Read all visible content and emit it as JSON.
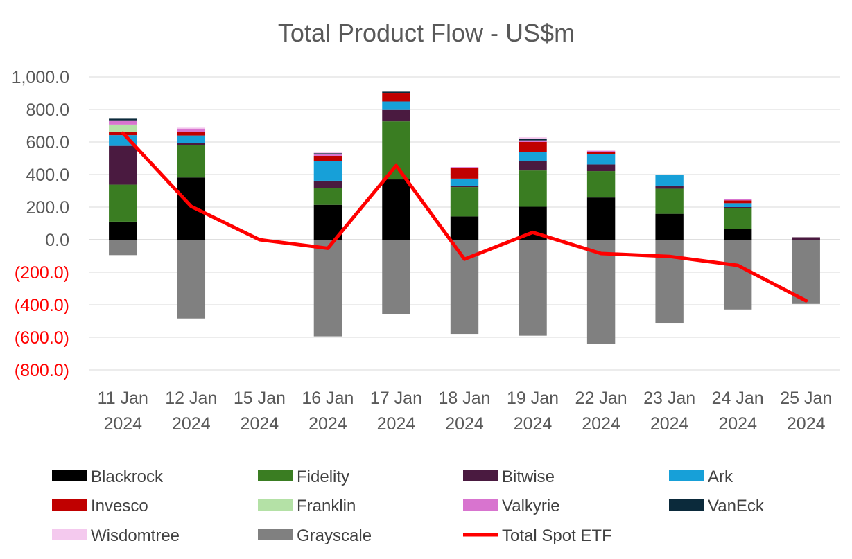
{
  "chart_data": {
    "type": "bar",
    "stacked": true,
    "title": "Total Product Flow - US$m",
    "xlabel": "",
    "ylabel": "",
    "ylim": [
      -800,
      1000
    ],
    "yticks": [
      1000,
      800,
      600,
      400,
      200,
      0,
      -200,
      -400,
      -600,
      -800
    ],
    "ytick_labels": [
      "1,000.0",
      "800.0",
      "600.0",
      "400.0",
      "200.0",
      "0.0",
      "(200.0)",
      "(400.0)",
      "(600.0)",
      "(800.0)"
    ],
    "categories": [
      {
        "line1": "11 Jan",
        "line2": "2024"
      },
      {
        "line1": "12 Jan",
        "line2": "2024"
      },
      {
        "line1": "15 Jan",
        "line2": "2024"
      },
      {
        "line1": "16 Jan",
        "line2": "2024"
      },
      {
        "line1": "17 Jan",
        "line2": "2024"
      },
      {
        "line1": "18 Jan",
        "line2": "2024"
      },
      {
        "line1": "19 Jan",
        "line2": "2024"
      },
      {
        "line1": "22 Jan",
        "line2": "2024"
      },
      {
        "line1": "23 Jan",
        "line2": "2024"
      },
      {
        "line1": "24 Jan",
        "line2": "2024"
      },
      {
        "line1": "25 Jan",
        "line2": "2024"
      }
    ],
    "series": [
      {
        "name": "Blackrock",
        "color": "#000000",
        "values": [
          111,
          382,
          0,
          214,
          370,
          143,
          202,
          259,
          159,
          66,
          0
        ]
      },
      {
        "name": "Fidelity",
        "color": "#3a7d22",
        "values": [
          227,
          198,
          0,
          101,
          357,
          180,
          223,
          162,
          154,
          126,
          0
        ]
      },
      {
        "name": "Bitwise",
        "color": "#4a1a40",
        "values": [
          238,
          13,
          0,
          47,
          70,
          9,
          57,
          41,
          19,
          8,
          15
        ]
      },
      {
        "name": "Ark",
        "color": "#17a0d8",
        "values": [
          66,
          47,
          0,
          122,
          52,
          43,
          57,
          62,
          65,
          24,
          0
        ]
      },
      {
        "name": "Invesco",
        "color": "#c00000",
        "values": [
          18,
          23,
          0,
          31,
          53,
          64,
          61,
          14,
          0,
          17,
          0
        ]
      },
      {
        "name": "Franklin",
        "color": "#b4e1a6",
        "values": [
          47,
          0,
          0,
          0,
          0,
          0,
          0,
          0,
          0,
          0,
          0
        ]
      },
      {
        "name": "Valkyrie",
        "color": "#d874cf",
        "values": [
          26,
          19,
          0,
          10,
          0,
          7,
          10,
          7,
          0,
          10,
          0
        ]
      },
      {
        "name": "VanEck",
        "color": "#0b2a3b",
        "values": [
          10,
          0,
          0,
          6,
          7,
          0,
          10,
          0,
          3,
          0,
          0
        ]
      },
      {
        "name": "Wisdomtree",
        "color": "#f4c9ee",
        "values": [
          0,
          6,
          0,
          6,
          0,
          0,
          9,
          4,
          0,
          0,
          0
        ]
      },
      {
        "name": "Grayscale",
        "color": "#808080",
        "values": [
          -95,
          -484,
          0,
          -594,
          -458,
          -579,
          -590,
          -641,
          -515,
          -429,
          -395
        ]
      }
    ],
    "line_series": {
      "name": "Total Spot ETF",
      "color": "#ff0000",
      "values": [
        655,
        204,
        0,
        -53,
        455,
        -120,
        45,
        -85,
        -103,
        -158,
        -375
      ]
    },
    "legend_position": "bottom"
  }
}
